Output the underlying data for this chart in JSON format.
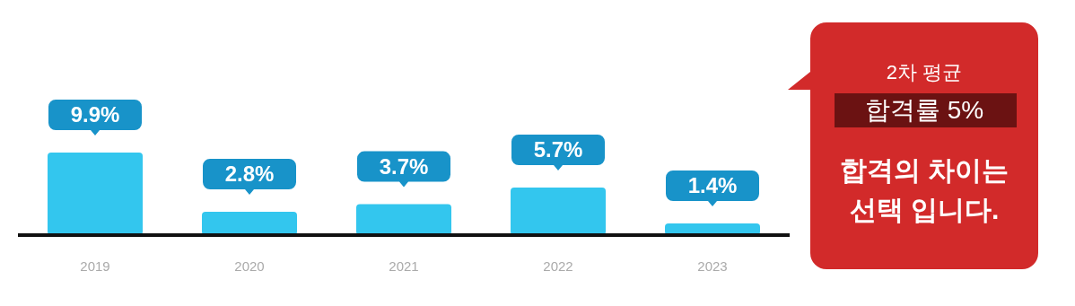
{
  "chart_data": [
    {
      "type": "bar",
      "categories": [
        "2019",
        "2020",
        "2021",
        "2022",
        "2023"
      ],
      "values": [
        9.9,
        2.8,
        3.7,
        5.7,
        1.4
      ],
      "value_labels": [
        "9.9%",
        "2.8%",
        "3.7%",
        "5.7%",
        "1.4%"
      ],
      "color": "#33c6ee"
    },
    {
      "type": "other",
      "annotations": [
        "2차 평균",
        "합격률 5%",
        "합격의 차이는",
        "선택 입니다."
      ]
    }
  ]
}
